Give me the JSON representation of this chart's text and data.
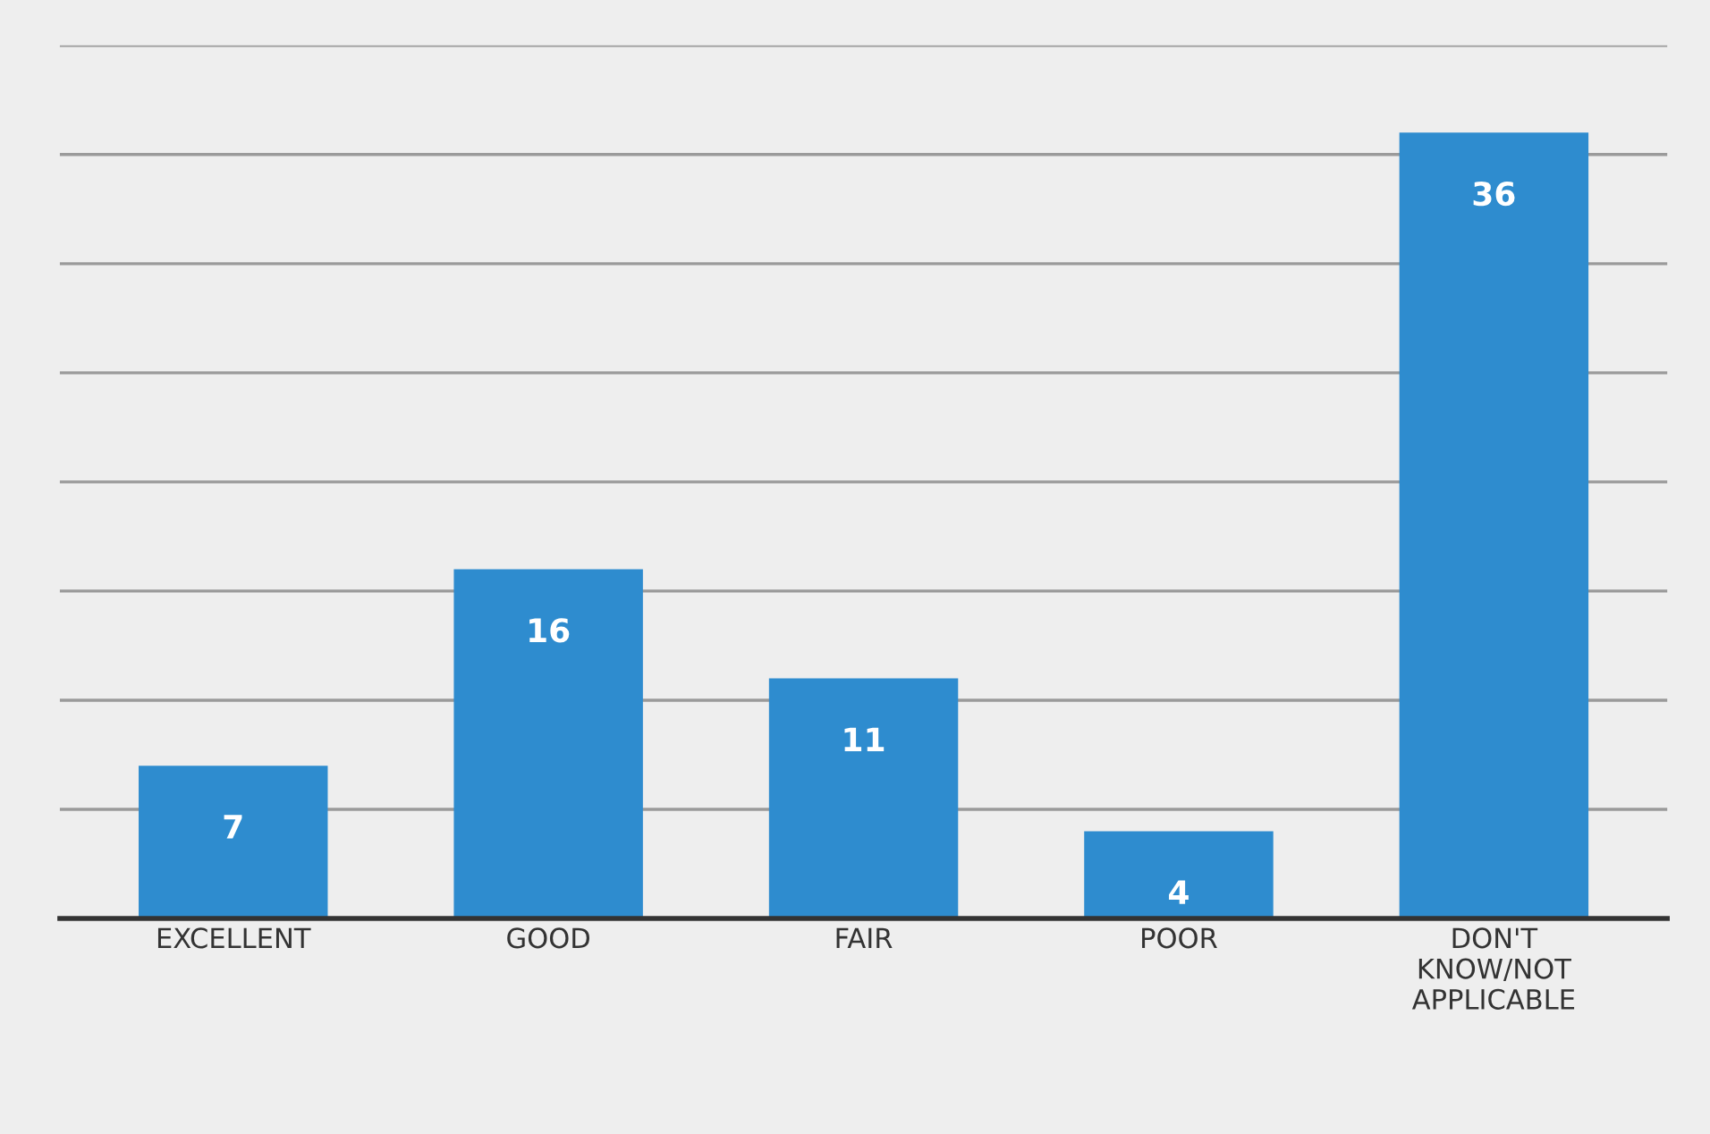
{
  "chart_data": {
    "type": "bar",
    "categories": [
      "EXCELLENT",
      "GOOD",
      "FAIR",
      "POOR",
      "DON'T\nKNOW/NOT\nAPPLICABLE"
    ],
    "values": [
      7,
      16,
      11,
      4,
      36
    ],
    "color": "#2e8ccf",
    "data_labels": true,
    "grid": "y",
    "tick_labels": "x",
    "ylim": [
      0,
      40
    ],
    "yticks": [
      {
        "value": 0,
        "label": null
      },
      {
        "value": 5,
        "label": null
      },
      {
        "value": 10,
        "label": null
      },
      {
        "value": 15,
        "label": null
      },
      {
        "value": 20,
        "label": null
      },
      {
        "value": 25,
        "label": null
      },
      {
        "value": 30,
        "label": null
      },
      {
        "value": 35,
        "label": null
      },
      {
        "value": 40,
        "label": null
      }
    ]
  }
}
